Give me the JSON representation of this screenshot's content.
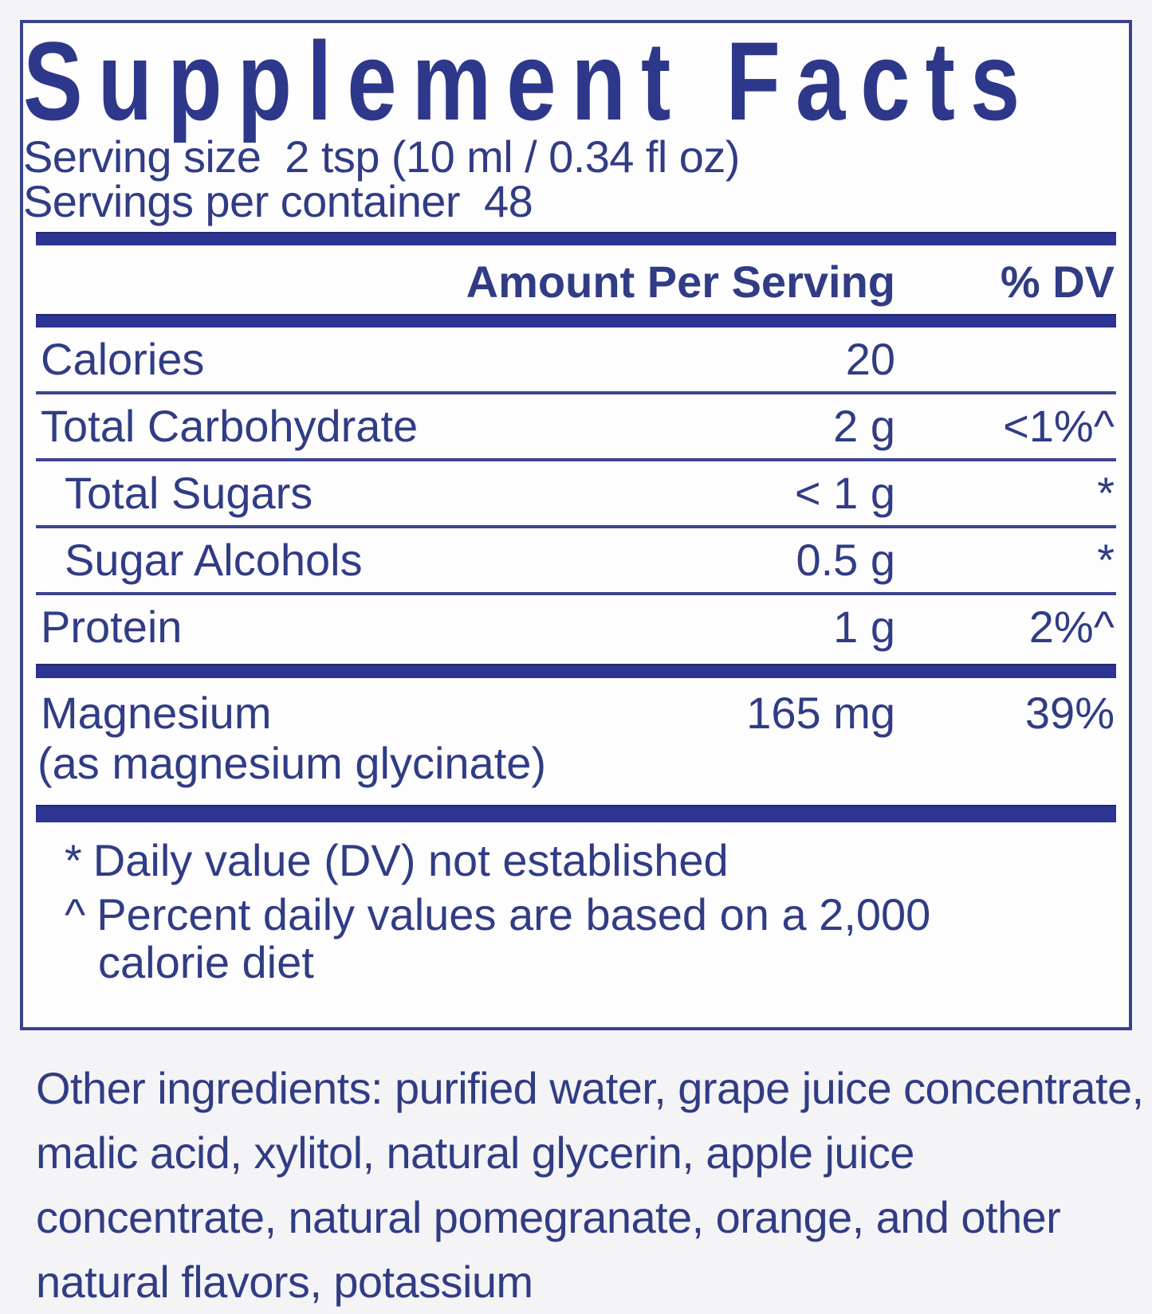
{
  "label": {
    "title": "Supplement Facts",
    "serving_size_line": "Serving size  2 tsp (10 ml / 0.34 fl oz)",
    "servings_per_container_line": "Servings per container  48",
    "header": {
      "amount": "Amount Per Serving",
      "dv": "% DV"
    },
    "rows": [
      {
        "name": "Calories",
        "amount": "20",
        "dv": ""
      },
      {
        "name": "Total Carbohydrate",
        "amount": "2 g",
        "dv": "<1%^"
      },
      {
        "name": "Total Sugars",
        "amount": "< 1 g",
        "dv": "*"
      },
      {
        "name": "Sugar Alcohols",
        "amount": "0.5 g",
        "dv": "*"
      },
      {
        "name": "Protein",
        "amount": "1 g",
        "dv": "2%^"
      }
    ],
    "mineral_row": {
      "name": "Magnesium",
      "sub": "(as magnesium glycinate)",
      "amount": "165 mg",
      "dv": "39%"
    },
    "footnotes": [
      {
        "symbol": "*",
        "text": "Daily value (DV) not established"
      },
      {
        "symbol": "^",
        "text": "Percent daily values are based on a 2,000 calorie diet"
      }
    ]
  },
  "other_ingredients": "Other ingredients: purified water, grape juice concentrate, malic acid, xylitol, natural glycerin, apple juice concentrate, natural pomegranate, orange, and other natural flavors, potassium",
  "colors": {
    "navy_text": "#313c85",
    "navy_bar": "#2d3492",
    "box_border": "#3a428e"
  }
}
